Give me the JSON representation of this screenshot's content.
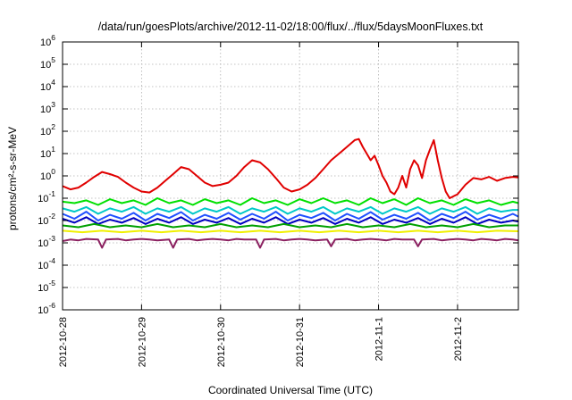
{
  "chart_data": {
    "type": "line",
    "title": "/data/run/goesPlots/archive/2012-11-02/18:00/flux/../flux/5daysMoonFluxes.txt",
    "xlabel": "Coordinated Universal Time (UTC)",
    "ylabel": "protons/cm²-s-sr-MeV",
    "yscale": "log",
    "xlim": [
      0,
      5.77
    ],
    "ylim_exponents": [
      -6,
      6
    ],
    "grid": true,
    "x_tick_labels": [
      "2012-10-28",
      "2012-10-29",
      "2012-10-30",
      "2012-10-31",
      "2012-11-1",
      "2012-11-2"
    ],
    "x_tick_positions": [
      0,
      1,
      2,
      3,
      4,
      5
    ],
    "y_tick_labels": [
      {
        "base": "10",
        "exp": "-6"
      },
      {
        "base": "10",
        "exp": "-5"
      },
      {
        "base": "10",
        "exp": "-4"
      },
      {
        "base": "10",
        "exp": "-3"
      },
      {
        "base": "10",
        "exp": "-2"
      },
      {
        "base": "10",
        "exp": "-1"
      },
      {
        "base": "10",
        "exp": "0"
      },
      {
        "base": "10",
        "exp": "1"
      },
      {
        "base": "10",
        "exp": "2"
      },
      {
        "base": "10",
        "exp": "3"
      },
      {
        "base": "10",
        "exp": "4"
      },
      {
        "base": "10",
        "exp": "5"
      },
      {
        "base": "10",
        "exp": "6"
      }
    ],
    "x_units": "days since 2012-10-28 00:00 UTC",
    "series": [
      {
        "color": "#e00000",
        "x": [
          0,
          0.1,
          0.2,
          0.3,
          0.4,
          0.5,
          0.6,
          0.7,
          0.8,
          0.9,
          1.0,
          1.1,
          1.2,
          1.3,
          1.4,
          1.5,
          1.6,
          1.7,
          1.8,
          1.9,
          2.0,
          2.1,
          2.2,
          2.3,
          2.4,
          2.5,
          2.6,
          2.7,
          2.8,
          2.9,
          3.0,
          3.1,
          3.2,
          3.3,
          3.4,
          3.5,
          3.6,
          3.7,
          3.75,
          3.8,
          3.85,
          3.9,
          3.95,
          4.0,
          4.05,
          4.1,
          4.15,
          4.2,
          4.25,
          4.3,
          4.35,
          4.4,
          4.45,
          4.5,
          4.55,
          4.6,
          4.65,
          4.7,
          4.75,
          4.8,
          4.85,
          4.9,
          5.0,
          5.1,
          5.2,
          5.3,
          5.4,
          5.5,
          5.6,
          5.7,
          5.77
        ],
        "values": [
          0.35,
          0.25,
          0.3,
          0.5,
          0.9,
          1.5,
          1.2,
          0.9,
          0.5,
          0.3,
          0.2,
          0.18,
          0.3,
          0.6,
          1.2,
          2.5,
          2.0,
          1.0,
          0.5,
          0.35,
          0.4,
          0.5,
          1.0,
          2.5,
          5.0,
          4.0,
          2.0,
          0.8,
          0.3,
          0.2,
          0.25,
          0.4,
          0.8,
          2.0,
          5.0,
          10.0,
          20.0,
          40.0,
          45.0,
          20.0,
          10.0,
          5.0,
          8.0,
          3.0,
          1.0,
          0.5,
          0.2,
          0.15,
          0.3,
          1.0,
          0.3,
          2.0,
          5.0,
          3.0,
          0.8,
          5.0,
          15.0,
          40.0,
          5.0,
          0.8,
          0.2,
          0.1,
          0.15,
          0.4,
          0.8,
          0.7,
          0.9,
          0.6,
          0.8,
          0.9,
          0.85
        ]
      },
      {
        "color": "#00e000",
        "x": [
          0,
          0.15,
          0.3,
          0.45,
          0.6,
          0.75,
          0.9,
          1.05,
          1.2,
          1.35,
          1.5,
          1.65,
          1.8,
          1.95,
          2.1,
          2.25,
          2.4,
          2.55,
          2.7,
          2.85,
          3.0,
          3.15,
          3.3,
          3.45,
          3.6,
          3.75,
          3.9,
          4.05,
          4.2,
          4.35,
          4.5,
          4.65,
          4.8,
          4.95,
          5.1,
          5.25,
          5.4,
          5.55,
          5.7,
          5.77
        ],
        "values": [
          0.07,
          0.06,
          0.08,
          0.05,
          0.09,
          0.06,
          0.08,
          0.05,
          0.1,
          0.06,
          0.08,
          0.05,
          0.09,
          0.06,
          0.08,
          0.05,
          0.1,
          0.06,
          0.08,
          0.05,
          0.09,
          0.06,
          0.1,
          0.06,
          0.08,
          0.05,
          0.1,
          0.06,
          0.09,
          0.05,
          0.1,
          0.06,
          0.08,
          0.05,
          0.09,
          0.06,
          0.08,
          0.05,
          0.07,
          0.06
        ]
      },
      {
        "color": "#00c8c8",
        "x": [
          0,
          0.15,
          0.3,
          0.45,
          0.6,
          0.75,
          0.9,
          1.05,
          1.2,
          1.35,
          1.5,
          1.65,
          1.8,
          1.95,
          2.1,
          2.25,
          2.4,
          2.55,
          2.7,
          2.85,
          3.0,
          3.15,
          3.3,
          3.45,
          3.6,
          3.75,
          3.9,
          4.05,
          4.2,
          4.35,
          4.5,
          4.65,
          4.8,
          4.95,
          5.1,
          5.25,
          5.4,
          5.55,
          5.7,
          5.77
        ],
        "values": [
          0.035,
          0.025,
          0.04,
          0.02,
          0.035,
          0.025,
          0.04,
          0.02,
          0.035,
          0.025,
          0.04,
          0.02,
          0.035,
          0.025,
          0.04,
          0.02,
          0.035,
          0.025,
          0.04,
          0.02,
          0.035,
          0.025,
          0.04,
          0.02,
          0.035,
          0.025,
          0.04,
          0.02,
          0.035,
          0.025,
          0.04,
          0.02,
          0.035,
          0.025,
          0.04,
          0.02,
          0.035,
          0.025,
          0.03,
          0.03
        ]
      },
      {
        "color": "#2050ff",
        "x": [
          0,
          0.15,
          0.3,
          0.45,
          0.6,
          0.75,
          0.9,
          1.05,
          1.2,
          1.35,
          1.5,
          1.65,
          1.8,
          1.95,
          2.1,
          2.25,
          2.4,
          2.55,
          2.7,
          2.85,
          3.0,
          3.15,
          3.3,
          3.45,
          3.6,
          3.75,
          3.9,
          4.05,
          4.2,
          4.35,
          4.5,
          4.65,
          4.8,
          4.95,
          5.1,
          5.25,
          5.4,
          5.55,
          5.7,
          5.77
        ],
        "values": [
          0.02,
          0.012,
          0.025,
          0.01,
          0.018,
          0.012,
          0.022,
          0.01,
          0.02,
          0.013,
          0.024,
          0.01,
          0.018,
          0.012,
          0.022,
          0.011,
          0.02,
          0.012,
          0.025,
          0.01,
          0.018,
          0.013,
          0.022,
          0.01,
          0.02,
          0.012,
          0.024,
          0.011,
          0.018,
          0.012,
          0.022,
          0.01,
          0.02,
          0.013,
          0.025,
          0.011,
          0.018,
          0.012,
          0.02,
          0.015
        ]
      },
      {
        "color": "#0000c0",
        "x": [
          0,
          0.15,
          0.3,
          0.45,
          0.6,
          0.75,
          0.9,
          1.05,
          1.2,
          1.35,
          1.5,
          1.65,
          1.8,
          1.95,
          2.1,
          2.25,
          2.4,
          2.55,
          2.7,
          2.85,
          3.0,
          3.15,
          3.3,
          3.45,
          3.6,
          3.75,
          3.9,
          4.05,
          4.2,
          4.35,
          4.5,
          4.65,
          4.8,
          4.95,
          5.1,
          5.25,
          5.4,
          5.55,
          5.7,
          5.77
        ],
        "values": [
          0.012,
          0.008,
          0.014,
          0.007,
          0.011,
          0.008,
          0.013,
          0.007,
          0.012,
          0.008,
          0.014,
          0.007,
          0.011,
          0.008,
          0.013,
          0.007,
          0.012,
          0.008,
          0.014,
          0.007,
          0.011,
          0.008,
          0.013,
          0.007,
          0.012,
          0.008,
          0.014,
          0.007,
          0.011,
          0.008,
          0.013,
          0.007,
          0.012,
          0.008,
          0.014,
          0.007,
          0.011,
          0.008,
          0.01,
          0.009
        ]
      },
      {
        "color": "#00a000",
        "x": [
          0,
          0.2,
          0.4,
          0.6,
          0.8,
          1.0,
          1.2,
          1.4,
          1.6,
          1.8,
          2.0,
          2.2,
          2.4,
          2.6,
          2.8,
          3.0,
          3.2,
          3.4,
          3.6,
          3.8,
          4.0,
          4.2,
          4.4,
          4.6,
          4.8,
          5.0,
          5.2,
          5.4,
          5.6,
          5.77
        ],
        "values": [
          0.006,
          0.005,
          0.007,
          0.005,
          0.006,
          0.005,
          0.007,
          0.005,
          0.006,
          0.005,
          0.007,
          0.005,
          0.006,
          0.005,
          0.007,
          0.005,
          0.006,
          0.005,
          0.007,
          0.005,
          0.006,
          0.005,
          0.007,
          0.005,
          0.006,
          0.005,
          0.007,
          0.005,
          0.006,
          0.006
        ]
      },
      {
        "color": "#f0f000",
        "x": [
          0,
          0.25,
          0.5,
          0.75,
          1.0,
          1.25,
          1.5,
          1.75,
          2.0,
          2.25,
          2.5,
          2.75,
          3.0,
          3.25,
          3.5,
          3.75,
          4.0,
          4.25,
          4.5,
          4.75,
          5.0,
          5.25,
          5.5,
          5.77
        ],
        "values": [
          0.0035,
          0.003,
          0.0035,
          0.003,
          0.0035,
          0.003,
          0.0035,
          0.003,
          0.0035,
          0.003,
          0.0035,
          0.003,
          0.0035,
          0.003,
          0.0035,
          0.003,
          0.0035,
          0.003,
          0.0035,
          0.003,
          0.0035,
          0.003,
          0.0035,
          0.0033
        ]
      },
      {
        "color": "#8b2060",
        "x": [
          0,
          0.1,
          0.2,
          0.3,
          0.45,
          0.5,
          0.55,
          0.7,
          0.8,
          0.9,
          1.0,
          1.1,
          1.2,
          1.35,
          1.4,
          1.45,
          1.6,
          1.7,
          1.8,
          1.9,
          2.0,
          2.1,
          2.2,
          2.3,
          2.45,
          2.5,
          2.55,
          2.7,
          2.8,
          2.9,
          3.0,
          3.1,
          3.2,
          3.35,
          3.4,
          3.45,
          3.6,
          3.7,
          3.8,
          3.9,
          4.0,
          4.1,
          4.2,
          4.3,
          4.45,
          4.5,
          4.55,
          4.7,
          4.8,
          4.9,
          5.0,
          5.1,
          5.2,
          5.3,
          5.4,
          5.5,
          5.6,
          5.7,
          5.77
        ],
        "values": [
          0.0012,
          0.0014,
          0.0013,
          0.0015,
          0.0014,
          0.0006,
          0.0014,
          0.0015,
          0.0013,
          0.0014,
          0.0015,
          0.0014,
          0.0013,
          0.0014,
          0.0006,
          0.0014,
          0.0015,
          0.0013,
          0.0014,
          0.0015,
          0.0014,
          0.0013,
          0.0015,
          0.0014,
          0.0014,
          0.0006,
          0.0014,
          0.0015,
          0.0013,
          0.0014,
          0.0015,
          0.0014,
          0.0013,
          0.0014,
          0.0007,
          0.0014,
          0.0015,
          0.0013,
          0.0014,
          0.0015,
          0.0014,
          0.0013,
          0.0015,
          0.0014,
          0.0014,
          0.0007,
          0.0014,
          0.0015,
          0.0013,
          0.0014,
          0.0015,
          0.0014,
          0.0013,
          0.0015,
          0.0014,
          0.0013,
          0.0015,
          0.0014,
          0.0013
        ]
      }
    ]
  }
}
